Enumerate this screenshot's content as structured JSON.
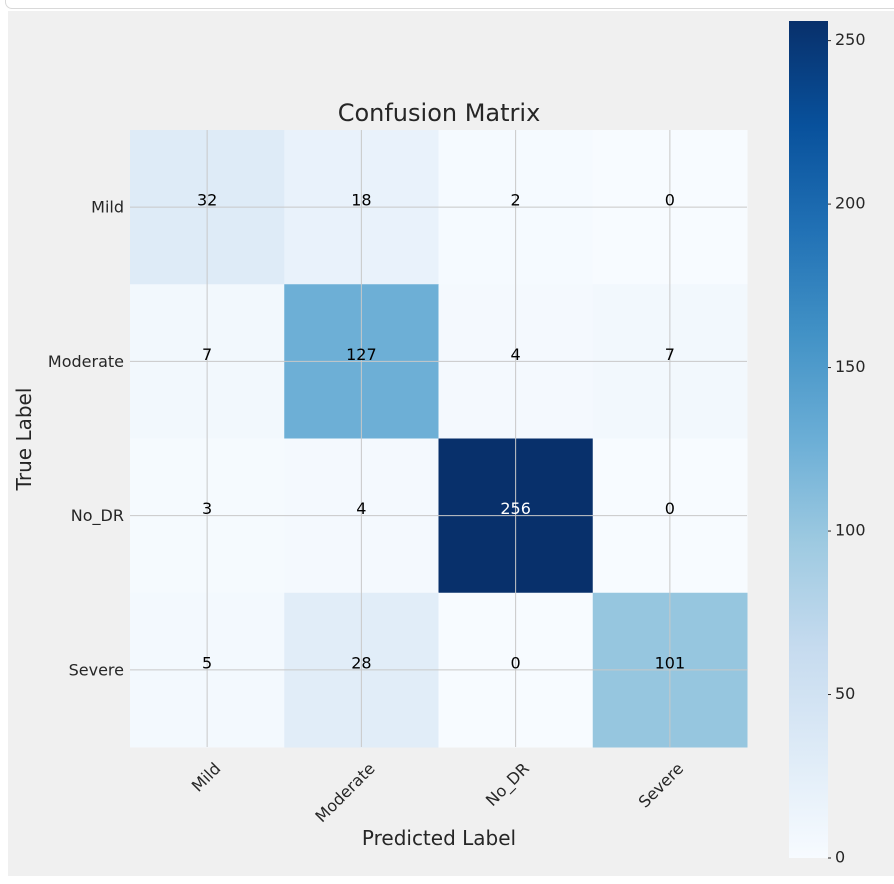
{
  "chart_data": {
    "type": "heatmap",
    "title": "Confusion Matrix",
    "xlabel": "Predicted Label",
    "ylabel": "True Label",
    "x_categories": [
      "Mild",
      "Moderate",
      "No_DR",
      "Severe"
    ],
    "y_categories": [
      "Mild",
      "Moderate",
      "No_DR",
      "Severe"
    ],
    "values": [
      [
        32,
        18,
        2,
        0
      ],
      [
        7,
        127,
        4,
        7
      ],
      [
        3,
        4,
        256,
        0
      ],
      [
        5,
        28,
        0,
        101
      ]
    ],
    "colorbar": {
      "min": 0,
      "max": 256,
      "ticks": [
        0,
        50,
        100,
        150,
        200,
        250
      ],
      "tick_labels": [
        "0",
        "50",
        "100",
        "150",
        "200",
        "250"
      ]
    },
    "colormap": "Blues",
    "grid": true,
    "x_tick_rotation": 45
  }
}
